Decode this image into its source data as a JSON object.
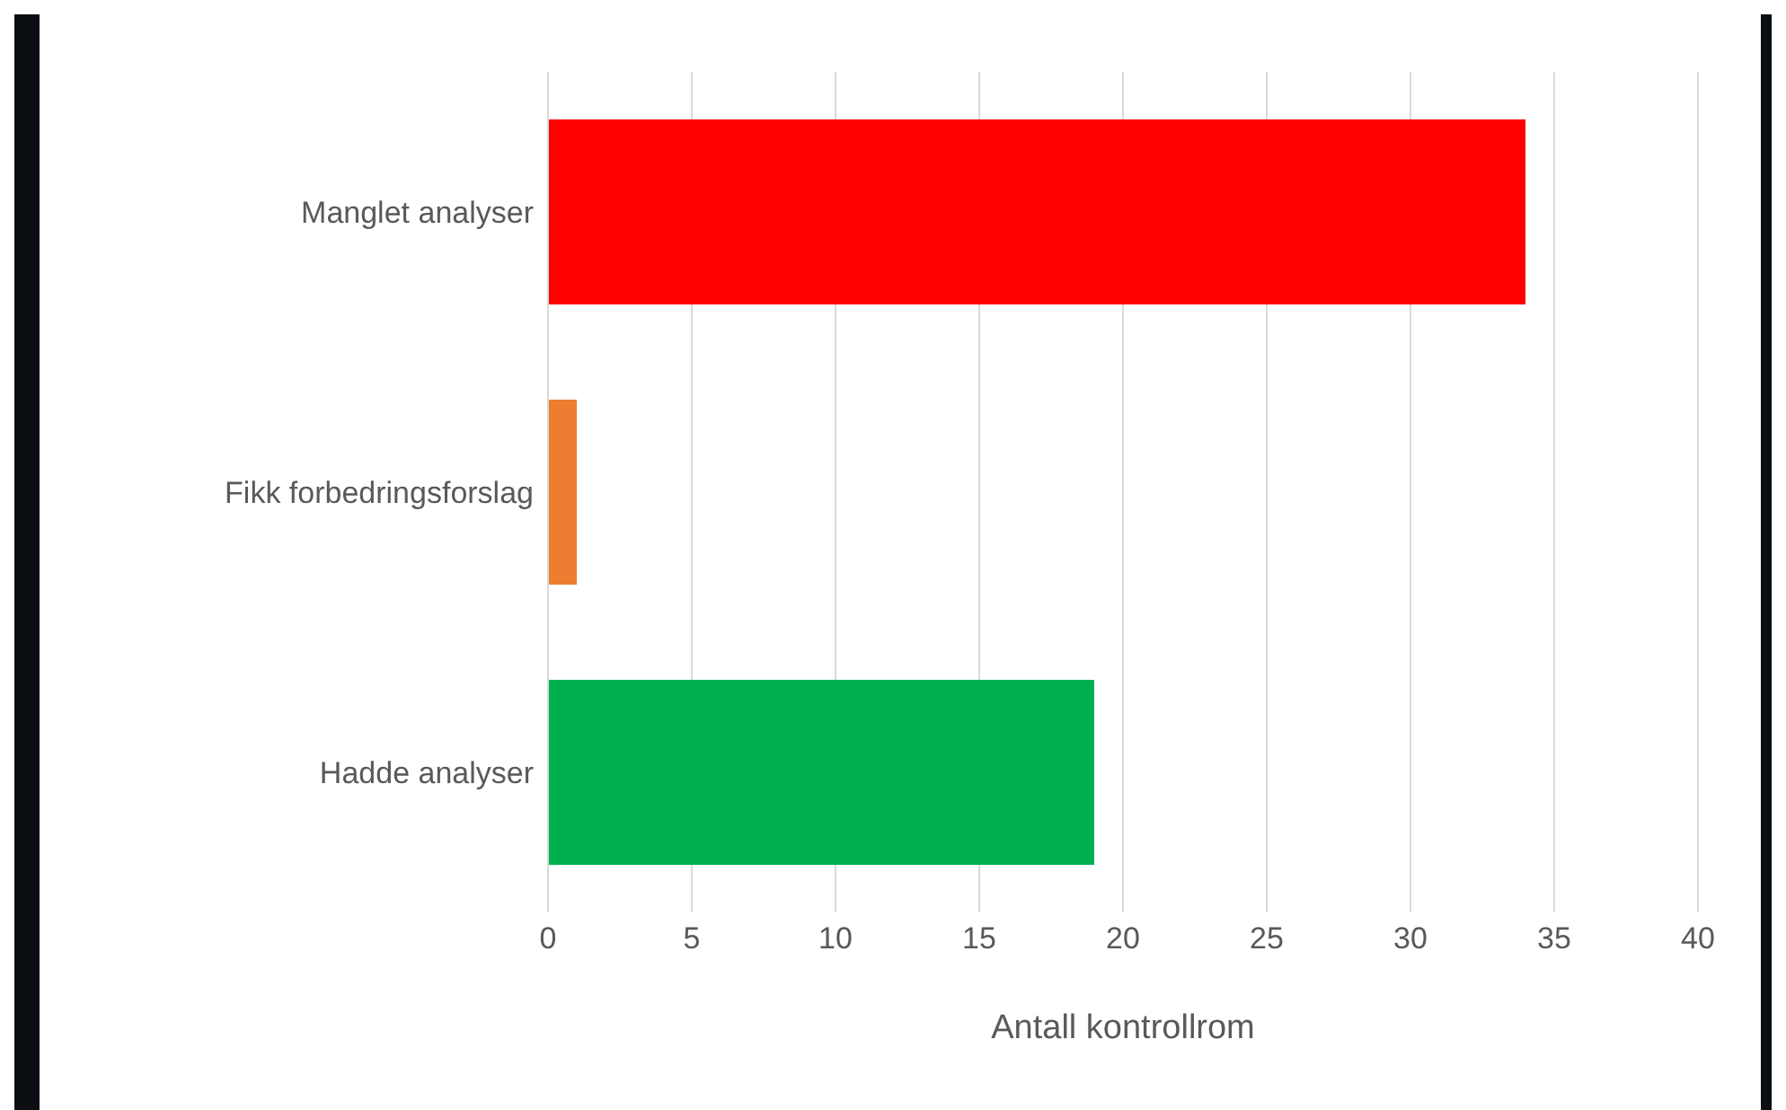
{
  "chart_data": {
    "type": "bar",
    "orientation": "horizontal",
    "xlabel": "Antall kontrollrom",
    "categories": [
      "Manglet analyser",
      "Fikk forbedringsforslag",
      "Hadde analyser"
    ],
    "values": [
      34,
      1,
      19
    ],
    "colors": [
      "#ff0000",
      "#ed7d31",
      "#00b050"
    ],
    "xlim": [
      0,
      40
    ],
    "xticks": [
      0,
      5,
      10,
      15,
      20,
      25,
      30,
      35,
      40
    ],
    "grid": "x",
    "legend": false
  }
}
